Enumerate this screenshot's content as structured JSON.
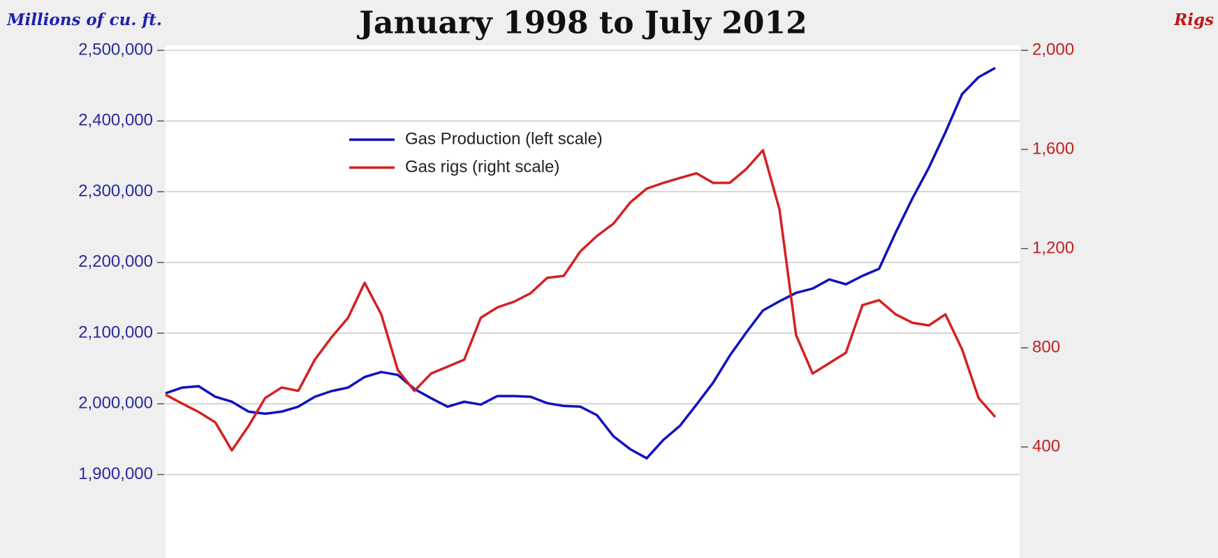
{
  "chart_data": {
    "type": "line",
    "title": "January 1998 to July 2012",
    "y_label": "Millions of cu. ft.",
    "y2_label": "Rigs",
    "ylim": [
      1782000,
      2500000
    ],
    "yticks": [
      {
        "value": 1900000,
        "label": "1,900,000"
      },
      {
        "value": 2000000,
        "label": "2,000,000"
      },
      {
        "value": 2100000,
        "label": "2,100,000"
      },
      {
        "value": 2200000,
        "label": "2,200,000"
      },
      {
        "value": 2300000,
        "label": "2,300,000"
      },
      {
        "value": 2400000,
        "label": "2,400,000"
      },
      {
        "value": 2500000,
        "label": "2,500,000"
      }
    ],
    "y2lim": [
      -48,
      2000
    ],
    "y2ticks": [
      400,
      800,
      {
        "value": 1200,
        "label": "1,200"
      },
      {
        "value": 1600,
        "label": "1,600"
      },
      {
        "value": 2000,
        "label": "2,000"
      }
    ],
    "grid": true,
    "legend": "top-center",
    "series": [
      {
        "name": "Gas Production (left scale)",
        "color": "#1010c0",
        "values": [
          2015000,
          2023000,
          2025000,
          2010000,
          2003000,
          1989000,
          1986000,
          1989000,
          1996000,
          2010000,
          2018000,
          2023000,
          2038000,
          2045000,
          2041000,
          2021000,
          2008000,
          1996000,
          2003000,
          1999000,
          2011000,
          2011000,
          2010000,
          2001000,
          1997000,
          1996000,
          1984000,
          1954000,
          1936000,
          1923000,
          1949000,
          1969000,
          1999000,
          2030000,
          2068000,
          2101000,
          2132000,
          2145000,
          2157000,
          2163000,
          2176000,
          2169000,
          2181000,
          2191000,
          2242000,
          2290000,
          2334000,
          2384000,
          2438000,
          2462000,
          2475000
        ]
      },
      {
        "name": "Gas rigs (right scale)",
        "color": "#d42020",
        "axis": "y2",
        "values": [
          611,
          575,
          541,
          499,
          386,
          484,
          597,
          640,
          626,
          752,
          842,
          921,
          1062,
          935,
          710,
          626,
          696,
          724,
          752,
          921,
          963,
          986,
          1020,
          1082,
          1090,
          1189,
          1251,
          1301,
          1386,
          1442,
          1465,
          1485,
          1504,
          1465,
          1465,
          1521,
          1597,
          1358,
          851,
          696,
          738,
          780,
          972,
          992,
          935,
          901,
          890,
          935,
          794,
          597,
          521
        ]
      }
    ]
  }
}
